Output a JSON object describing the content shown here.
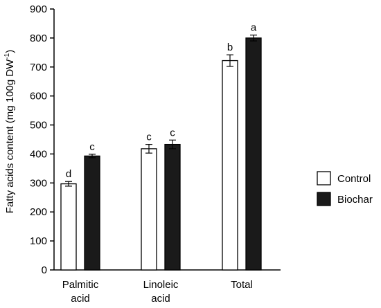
{
  "chart_data": {
    "type": "bar",
    "categories": [
      {
        "line1": "Palmitic",
        "line2": "acid"
      },
      {
        "line1": "Linoleic",
        "line2": "acid"
      },
      {
        "line1": "Total",
        "line2": ""
      }
    ],
    "ylabel": {
      "main": "Fatty acids content (mg 100g DW",
      "sup": "-1",
      "close": ")"
    },
    "ylim": [
      0,
      900
    ],
    "yticks": [
      0,
      100,
      200,
      300,
      400,
      500,
      600,
      700,
      800,
      900
    ],
    "grid": false,
    "legend": "right",
    "series": [
      {
        "name": "Control",
        "color": "#ffffff",
        "values": [
          297,
          418,
          722
        ],
        "errors": [
          8,
          15,
          20
        ],
        "letters": [
          "d",
          "c",
          "b"
        ]
      },
      {
        "name": "Biochar",
        "color": "#1a1a1a",
        "values": [
          393,
          433,
          800
        ],
        "errors": [
          6,
          15,
          10
        ],
        "letters": [
          "c",
          "c",
          "a"
        ]
      }
    ]
  }
}
